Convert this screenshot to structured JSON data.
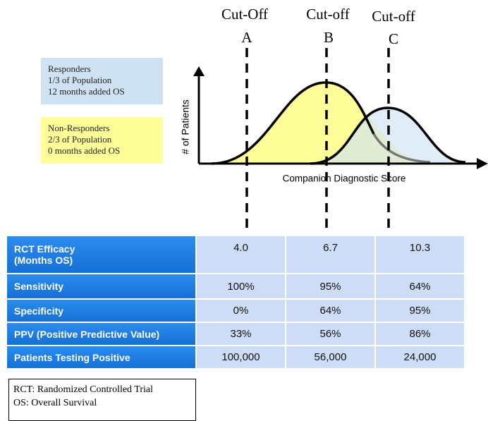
{
  "cutoffs": [
    {
      "label": "Cut-Off",
      "letter": "A"
    },
    {
      "label": "Cut-off",
      "letter": "B"
    },
    {
      "label": "Cut-off",
      "letter": "C"
    }
  ],
  "legend": [
    {
      "lines": [
        "Responders",
        "1/3 of Population",
        "12 months added OS"
      ]
    },
    {
      "lines": [
        "Non-Responders",
        "2/3 of Population",
        "0 months added OS"
      ]
    }
  ],
  "axis": {
    "y_label": "# of Patients",
    "x_label": "Companion Diagnostic Score"
  },
  "table": {
    "rows": [
      {
        "label": [
          "RCT Efficacy",
          "(Months OS)"
        ],
        "values": [
          "4.0",
          "6.7",
          "10.3"
        ]
      },
      {
        "label": [
          "Sensitivity"
        ],
        "values": [
          "100%",
          "95%",
          "64%"
        ]
      },
      {
        "label": [
          "Specificity"
        ],
        "values": [
          "0%",
          "64%",
          "95%"
        ]
      },
      {
        "label": [
          "PPV (Positive Predictive Value)"
        ],
        "values": [
          "33%",
          "56%",
          "86%"
        ]
      },
      {
        "label": [
          "Patients Testing Positive"
        ],
        "values": [
          "100,000",
          "56,000",
          "24,000"
        ]
      }
    ]
  },
  "footnote": {
    "lines": [
      "RCT: Randomized  Controlled Trial",
      "OS: Overall Survival"
    ]
  }
}
